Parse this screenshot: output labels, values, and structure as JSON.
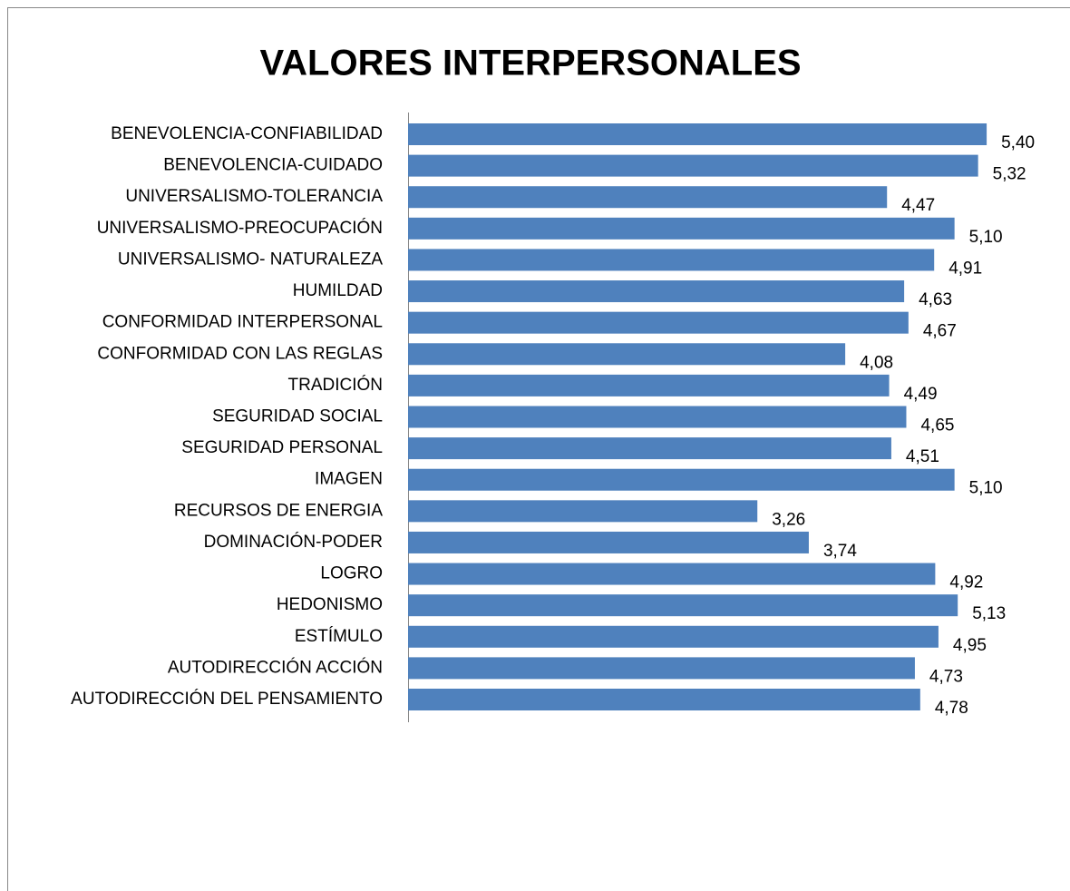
{
  "chart_data": {
    "type": "bar",
    "orientation": "horizontal",
    "title": "VALORES INTERPERSONALES",
    "categories": [
      "BENEVOLENCIA-CONFIABILIDAD",
      "BENEVOLENCIA-CUIDADO",
      "UNIVERSALISMO-TOLERANCIA",
      "UNIVERSALISMO-PREOCUPACIÓN",
      "UNIVERSALISMO- NATURALEZA",
      "HUMILDAD",
      "CONFORMIDAD INTERPERSONAL",
      "CONFORMIDAD CON LAS REGLAS",
      "TRADICIÓN",
      "SEGURIDAD SOCIAL",
      "SEGURIDAD PERSONAL",
      "IMAGEN",
      "RECURSOS DE ENERGIA",
      "DOMINACIÓN-PODER",
      "LOGRO",
      "HEDONISMO",
      "ESTÍMULO",
      "AUTODIRECCIÓN ACCIÓN",
      "AUTODIRECCIÓN DEL PENSAMIENTO"
    ],
    "values": [
      5.4,
      5.32,
      4.47,
      5.1,
      4.91,
      4.63,
      4.67,
      4.08,
      4.49,
      4.65,
      4.51,
      5.1,
      3.26,
      3.74,
      4.92,
      5.13,
      4.95,
      4.73,
      4.78
    ],
    "value_labels": [
      "5,40",
      "5,32",
      "4,47",
      "5,10",
      "4,91",
      "4,63",
      "4,67",
      "4,08",
      "4,49",
      "4,65",
      "4,51",
      "5,10",
      "3,26",
      "3,74",
      "4,92",
      "5,13",
      "4,95",
      "4,73",
      "4,78"
    ],
    "color": "#4f81bd",
    "xlim": [
      0,
      6
    ]
  }
}
